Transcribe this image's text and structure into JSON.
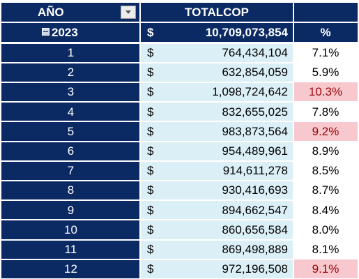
{
  "header": {
    "col_year": "AÑO",
    "col_total": "TOTALCOP",
    "col_pct": ""
  },
  "year_row": {
    "year": "2023",
    "currency": "$",
    "total": "10,709,073,854",
    "pct_header": "%"
  },
  "months": [
    {
      "month": "1",
      "currency": "$",
      "total": "764,434,104",
      "pct": "7.1%",
      "highlight": false
    },
    {
      "month": "2",
      "currency": "$",
      "total": "632,854,059",
      "pct": "5.9%",
      "highlight": false
    },
    {
      "month": "3",
      "currency": "$",
      "total": "1,098,724,642",
      "pct": "10.3%",
      "highlight": true
    },
    {
      "month": "4",
      "currency": "$",
      "total": "832,655,025",
      "pct": "7.8%",
      "highlight": false
    },
    {
      "month": "5",
      "currency": "$",
      "total": "983,873,564",
      "pct": "9.2%",
      "highlight": true
    },
    {
      "month": "6",
      "currency": "$",
      "total": "954,489,961",
      "pct": "8.9%",
      "highlight": false
    },
    {
      "month": "7",
      "currency": "$",
      "total": "914,611,278",
      "pct": "8.5%",
      "highlight": false
    },
    {
      "month": "8",
      "currency": "$",
      "total": "930,416,693",
      "pct": "8.7%",
      "highlight": false
    },
    {
      "month": "9",
      "currency": "$",
      "total": "894,662,547",
      "pct": "8.4%",
      "highlight": false
    },
    {
      "month": "10",
      "currency": "$",
      "total": "860,656,584",
      "pct": "8.0%",
      "highlight": false
    },
    {
      "month": "11",
      "currency": "$",
      "total": "869,498,889",
      "pct": "8.1%",
      "highlight": false
    },
    {
      "month": "12",
      "currency": "$",
      "total": "972,196,508",
      "pct": "9.1%",
      "highlight": true
    }
  ],
  "colors": {
    "header_bg": "#0b2a63",
    "total_bg": "#dbeff6",
    "highlight_bg": "#f7c9ce",
    "highlight_text": "#9c0006"
  },
  "icons": {
    "filter": "filter-dropdown-icon",
    "collapse": "collapse-minus-icon"
  }
}
